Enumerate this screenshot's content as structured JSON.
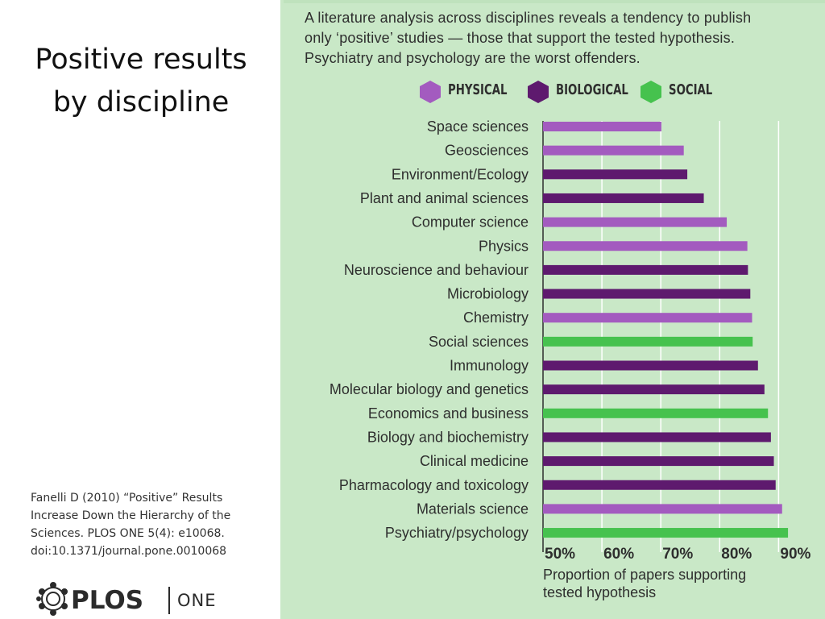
{
  "slide": {
    "title_lines": [
      "Positive results",
      "by discipline"
    ],
    "citation_lines": [
      "Fanelli D (2010) “Positive” Results",
      "Increase Down the Hierarchy of the",
      "Sciences. PLOS ONE 5(4): e10068.",
      "doi:10.1371/journal.pone.0010068"
    ],
    "logo": {
      "brand": "PLOS",
      "sub": "ONE"
    }
  },
  "colors": {
    "physical": "#a35bbf",
    "biological": "#5e1a6e",
    "social": "#46c24e",
    "panel_bg": "#c9e8c7",
    "grid": "#ffffff"
  },
  "chart_data": {
    "type": "bar",
    "orientation": "horizontal",
    "caption_lines": [
      "A literature analysis across disciplines reveals a tendency to publish",
      "only ‘positive’ studies — those that support the tested hypothesis.",
      "Psychiatry and psychology are the worst offenders."
    ],
    "legend": [
      {
        "label": "PHYSICAL",
        "group": "physical"
      },
      {
        "label": "BIOLOGICAL",
        "group": "biological"
      },
      {
        "label": "SOCIAL",
        "group": "social"
      }
    ],
    "legend_position": "top",
    "categories": [
      "Space sciences",
      "Geosciences",
      "Environment/Ecology",
      "Plant and animal sciences",
      "Computer science",
      "Physics",
      "Neuroscience and behaviour",
      "Microbiology",
      "Chemistry",
      "Social sciences",
      "Immunology",
      "Molecular biology and genetics",
      "Economics and business",
      "Biology and biochemistry",
      "Clinical medicine",
      "Pharmacology and toxicology",
      "Materials science",
      "Psychiatry/psychology"
    ],
    "values": [
      70.1,
      73.9,
      74.5,
      77.3,
      81.2,
      84.7,
      84.8,
      85.2,
      85.5,
      85.6,
      86.5,
      87.6,
      88.2,
      88.7,
      89.2,
      89.5,
      90.6,
      91.6
    ],
    "groups": [
      "physical",
      "physical",
      "biological",
      "biological",
      "physical",
      "physical",
      "biological",
      "biological",
      "physical",
      "social",
      "biological",
      "biological",
      "social",
      "biological",
      "biological",
      "biological",
      "physical",
      "social"
    ],
    "xlim": [
      50,
      92
    ],
    "xticks": [
      50,
      60,
      70,
      80,
      90
    ],
    "xtick_labels": [
      "50%",
      "60%",
      "70%",
      "80%",
      "90%"
    ],
    "xlabel_lines": [
      "Proportion of papers supporting",
      "tested hypothesis"
    ],
    "grid": true
  }
}
